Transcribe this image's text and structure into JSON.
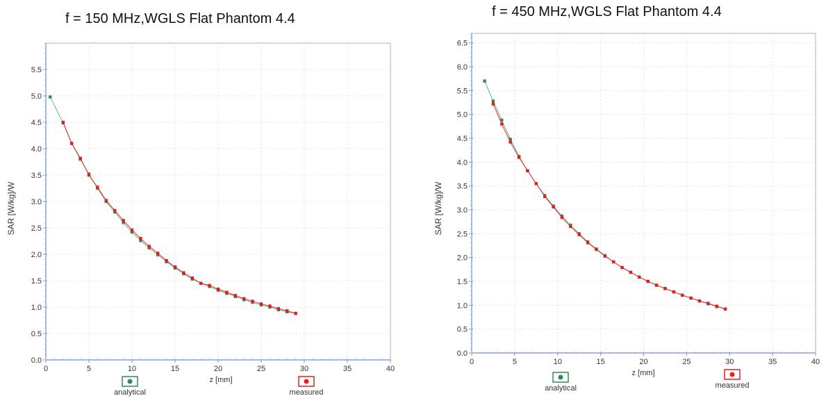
{
  "chart_data": [
    {
      "type": "scatter",
      "title": "f = 150 MHz,WGLS Flat Phantom 4.4",
      "xlabel": "z [mm]",
      "ylabel": "SAR [W/kg]/W",
      "xlim": [
        0,
        40
      ],
      "ylim": [
        0,
        6.0
      ],
      "x_ticks": [
        0,
        5,
        10,
        15,
        20,
        25,
        30,
        35,
        40
      ],
      "y_ticks": [
        0.0,
        0.5,
        1.0,
        1.5,
        2.0,
        2.5,
        3.0,
        3.5,
        4.0,
        4.5,
        5.0,
        5.5
      ],
      "grid": true,
      "legend_placement": "bottom",
      "series": [
        {
          "name": "analytical",
          "color": "#2e8b57",
          "x": [
            0.5,
            2,
            3,
            4,
            5,
            6,
            7,
            8,
            9,
            10,
            11,
            12,
            13,
            14,
            15,
            16,
            17,
            18,
            19,
            20,
            21,
            22,
            23,
            24,
            25,
            26,
            27,
            28,
            29
          ],
          "y": [
            4.98,
            4.49,
            4.1,
            3.8,
            3.52,
            3.25,
            3.0,
            2.8,
            2.6,
            2.42,
            2.26,
            2.12,
            1.99,
            1.86,
            1.74,
            1.63,
            1.53,
            1.45,
            1.39,
            1.32,
            1.26,
            1.2,
            1.14,
            1.09,
            1.04,
            1.0,
            0.95,
            0.91,
            0.88
          ]
        },
        {
          "name": "measured",
          "color": "#e02020",
          "x": [
            2,
            3,
            4,
            5,
            6,
            7,
            8,
            9,
            10,
            11,
            12,
            13,
            14,
            15,
            16,
            17,
            18,
            19,
            20,
            21,
            22,
            23,
            24,
            25,
            26,
            27,
            28,
            29
          ],
          "y": [
            4.5,
            4.1,
            3.82,
            3.5,
            3.27,
            3.02,
            2.83,
            2.64,
            2.46,
            2.3,
            2.15,
            2.02,
            1.88,
            1.76,
            1.65,
            1.55,
            1.45,
            1.41,
            1.34,
            1.28,
            1.22,
            1.16,
            1.11,
            1.06,
            1.02,
            0.97,
            0.93,
            0.88
          ]
        }
      ]
    },
    {
      "type": "scatter",
      "title": "f = 450 MHz,WGLS Flat Phantom 4.4",
      "xlabel": "z [mm]",
      "ylabel": "SAR [W/kg]/W",
      "xlim": [
        0,
        40
      ],
      "ylim": [
        0,
        6.7
      ],
      "x_ticks": [
        0,
        5,
        10,
        15,
        20,
        25,
        30,
        35,
        40
      ],
      "y_ticks": [
        0.0,
        0.5,
        1.0,
        1.5,
        2.0,
        2.5,
        3.0,
        3.5,
        4.0,
        4.5,
        5.0,
        5.5,
        6.0,
        6.5
      ],
      "grid": true,
      "legend_placement": "bottom",
      "series": [
        {
          "name": "analytical",
          "color": "#2e8b57",
          "x": [
            1.5,
            2.5,
            3.5,
            4.5,
            5.5,
            6.5,
            7.5,
            8.5,
            9.5,
            10.5,
            11.5,
            12.5,
            13.5,
            14.5,
            15.5,
            16.5,
            17.5,
            18.5,
            19.5,
            20.5,
            21.5,
            22.5,
            23.5,
            24.5,
            25.5,
            26.5,
            27.5,
            28.5,
            29.5
          ],
          "y": [
            5.7,
            5.28,
            4.88,
            4.48,
            4.12,
            3.82,
            3.55,
            3.3,
            3.08,
            2.87,
            2.68,
            2.5,
            2.33,
            2.18,
            2.04,
            1.91,
            1.79,
            1.69,
            1.59,
            1.5,
            1.42,
            1.35,
            1.28,
            1.21,
            1.15,
            1.09,
            1.03,
            0.97,
            0.92
          ]
        },
        {
          "name": "measured",
          "color": "#e02020",
          "x": [
            2.5,
            3.5,
            4.5,
            5.5,
            6.5,
            7.5,
            8.5,
            9.5,
            10.5,
            11.5,
            12.5,
            13.5,
            14.5,
            15.5,
            16.5,
            17.5,
            18.5,
            19.5,
            20.5,
            21.5,
            22.5,
            23.5,
            24.5,
            25.5,
            26.5,
            27.5,
            28.5,
            29.5
          ],
          "y": [
            5.22,
            4.8,
            4.42,
            4.1,
            3.82,
            3.55,
            3.28,
            3.06,
            2.84,
            2.65,
            2.48,
            2.31,
            2.17,
            2.03,
            1.91,
            1.79,
            1.69,
            1.59,
            1.5,
            1.42,
            1.35,
            1.28,
            1.21,
            1.15,
            1.09,
            1.04,
            0.98,
            0.92
          ]
        }
      ]
    }
  ]
}
